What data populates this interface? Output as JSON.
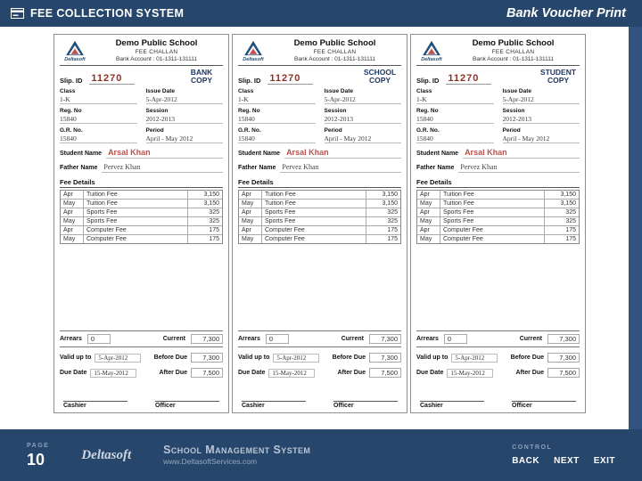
{
  "header": {
    "app_title": "FEE COLLECTION SYSTEM",
    "page_title": "Bank Voucher Print"
  },
  "colors": {
    "bar_navy": "#26476b",
    "side_band": "#31537d",
    "student_name_red": "#c0504d",
    "copy_label_navy": "#1f3864",
    "slip_id_red": "#8a3324"
  },
  "voucher_common": {
    "logo_text": "Deltasoft",
    "school_name": "Demo Public School",
    "doc_title": "FEE CHALLAN",
    "bank_account_line": "Bank Account : 01-1311-131111",
    "slip_id_label": "Slip. ID",
    "slip_id": "11270",
    "fields": [
      {
        "label": "Class",
        "value": "1-K"
      },
      {
        "label": "Issue Date",
        "value": "5-Apr-2012"
      },
      {
        "label": "Reg. No",
        "value": "15840"
      },
      {
        "label": "Session",
        "value": "2012-2013"
      },
      {
        "label": "G.R. No.",
        "value": "15840"
      },
      {
        "label": "Period",
        "value": "April - May 2012"
      }
    ],
    "student_name_label": "Student Name",
    "student_name": "Arsal Khan",
    "father_name_label": "Father Name",
    "father_name": "Pervez Khan",
    "fee_details_label": "Fee Details",
    "fee_rows": [
      {
        "month": "Apr",
        "item": "Tuition Fee",
        "amount": "3,150"
      },
      {
        "month": "May",
        "item": "Tuition Fee",
        "amount": "3,150"
      },
      {
        "month": "Apr",
        "item": "Sports Fee",
        "amount": "325"
      },
      {
        "month": "May",
        "item": "Sports Fee",
        "amount": "325"
      },
      {
        "month": "Apr",
        "item": "Computer Fee",
        "amount": "175"
      },
      {
        "month": "May",
        "item": "Computer Fee",
        "amount": "175"
      }
    ],
    "arrears_label": "Arrears",
    "arrears_value": "0",
    "current_label": "Current",
    "current_value": "7,300",
    "valid_label": "Valid up to",
    "valid_value": "5-Apr-2012",
    "before_due_label": "Before Due",
    "before_due_value": "7,300",
    "due_label": "Due Date",
    "due_value": "15-May-2012",
    "after_due_label": "After Due",
    "after_due_value": "7,500",
    "cashier_label": "Cashier",
    "officer_label": "Officer"
  },
  "copies": [
    {
      "copy_label": "BANK COPY"
    },
    {
      "copy_label": "SCHOOL COPY"
    },
    {
      "copy_label": "STUDENT COPY"
    }
  ],
  "footer": {
    "page_label": "PAGE",
    "page_number": "10",
    "brand": "Deltasoft",
    "product_name": "School Management System",
    "website": "www.DeltasoftServices.com",
    "control_label": "CONTROL",
    "back_label": "BACK",
    "next_label": "NEXT",
    "exit_label": "EXIT"
  }
}
